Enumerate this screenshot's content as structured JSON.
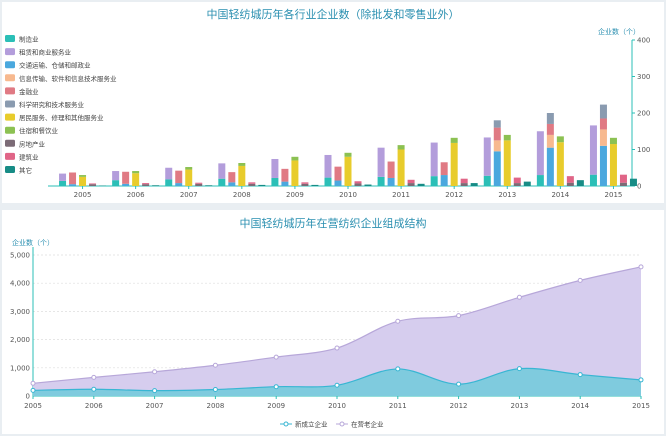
{
  "chart_data": [
    {
      "type": "bar",
      "stacked": true,
      "title": "中国轻纺城历年各行业企业数（除批发和零售业外）",
      "ylabel": "企业数（个）",
      "ylim": [
        0,
        400
      ],
      "yticks": [
        0,
        100,
        200,
        300,
        400
      ],
      "yaxis_side": "right",
      "legend_position": "left",
      "categories": [
        "2005",
        "2006",
        "2007",
        "2008",
        "2009",
        "2010",
        "2011",
        "2012",
        "2013",
        "2014",
        "2015"
      ],
      "groups": [
        {
          "stack": 1,
          "series": [
            {
              "name": "制造业",
              "color": "#2bbfb7",
              "values": [
                14,
                16,
                18,
                20,
                22,
                23,
                25,
                27,
                28,
                30,
                31
              ]
            },
            {
              "name": "租赁和商业服务业",
              "color": "#b39ddb",
              "values": [
                20,
                25,
                32,
                42,
                52,
                62,
                80,
                92,
                105,
                120,
                135
              ]
            }
          ]
        },
        {
          "stack": 2,
          "series": [
            {
              "name": "交通运输、仓储和邮政业",
              "color": "#4aa8de",
              "values": [
                5,
                6,
                8,
                10,
                12,
                15,
                22,
                30,
                95,
                105,
                110
              ]
            },
            {
              "name": "信息传输、软件和信息技术服务业",
              "color": "#f7b98f",
              "values": [
                0,
                0,
                0,
                0,
                0,
                0,
                0,
                0,
                30,
                35,
                45
              ]
            },
            {
              "name": "金融业",
              "color": "#e07a84",
              "values": [
                32,
                33,
                34,
                28,
                35,
                38,
                45,
                35,
                35,
                30,
                30
              ]
            },
            {
              "name": "科学研究和技术服务业",
              "color": "#8a9bb0",
              "values": [
                0,
                0,
                0,
                0,
                0,
                0,
                0,
                0,
                20,
                30,
                38
              ]
            }
          ]
        },
        {
          "stack": 3,
          "series": [
            {
              "name": "居民服务、修理和其他服务业",
              "color": "#e8cc2c",
              "values": [
                25,
                35,
                45,
                55,
                70,
                80,
                100,
                118,
                125,
                120,
                115
              ]
            },
            {
              "name": "住宿和餐饮业",
              "color": "#8cc152",
              "values": [
                5,
                6,
                7,
                8,
                10,
                11,
                12,
                14,
                15,
                16,
                17
              ]
            }
          ]
        },
        {
          "stack": 4,
          "series": [
            {
              "name": "房地产业",
              "color": "#7b6b76",
              "values": [
                5,
                5,
                6,
                6,
                6,
                7,
                8,
                8,
                8,
                9,
                9
              ]
            },
            {
              "name": "建筑业",
              "color": "#e06587",
              "values": [
                2,
                3,
                3,
                4,
                4,
                6,
                9,
                12,
                15,
                18,
                22
              ]
            }
          ]
        },
        {
          "stack": 5,
          "series": [
            {
              "name": "其它",
              "color": "#178c86",
              "values": [
                1,
                2,
                2,
                3,
                3,
                4,
                6,
                8,
                12,
                16,
                20
              ]
            }
          ]
        }
      ]
    },
    {
      "type": "area",
      "title": "中国轻纺城历年在营纺织企业组成结构",
      "ylabel": "企业数（个）",
      "ylim": [
        0,
        5000
      ],
      "yticks": [
        "0",
        "1,000",
        "2,000",
        "3,000",
        "4,000",
        "5,000"
      ],
      "yaxis_side": "left",
      "legend_position": "bottom-center",
      "categories": [
        "2005",
        "2006",
        "2007",
        "2008",
        "2009",
        "2010",
        "2011",
        "2012",
        "2013",
        "2014",
        "2015"
      ],
      "series": [
        {
          "name": "新成立企业",
          "color": "#38b6d3",
          "fill": "#7fcbde",
          "values": [
            200,
            240,
            190,
            230,
            330,
            380,
            960,
            420,
            970,
            760,
            570
          ]
        },
        {
          "name": "在营老企业",
          "color": "#b7a7d9",
          "fill": "#d6cdee",
          "values": [
            450,
            660,
            860,
            1090,
            1380,
            1700,
            2650,
            2850,
            3500,
            4100,
            4580
          ]
        }
      ]
    }
  ]
}
